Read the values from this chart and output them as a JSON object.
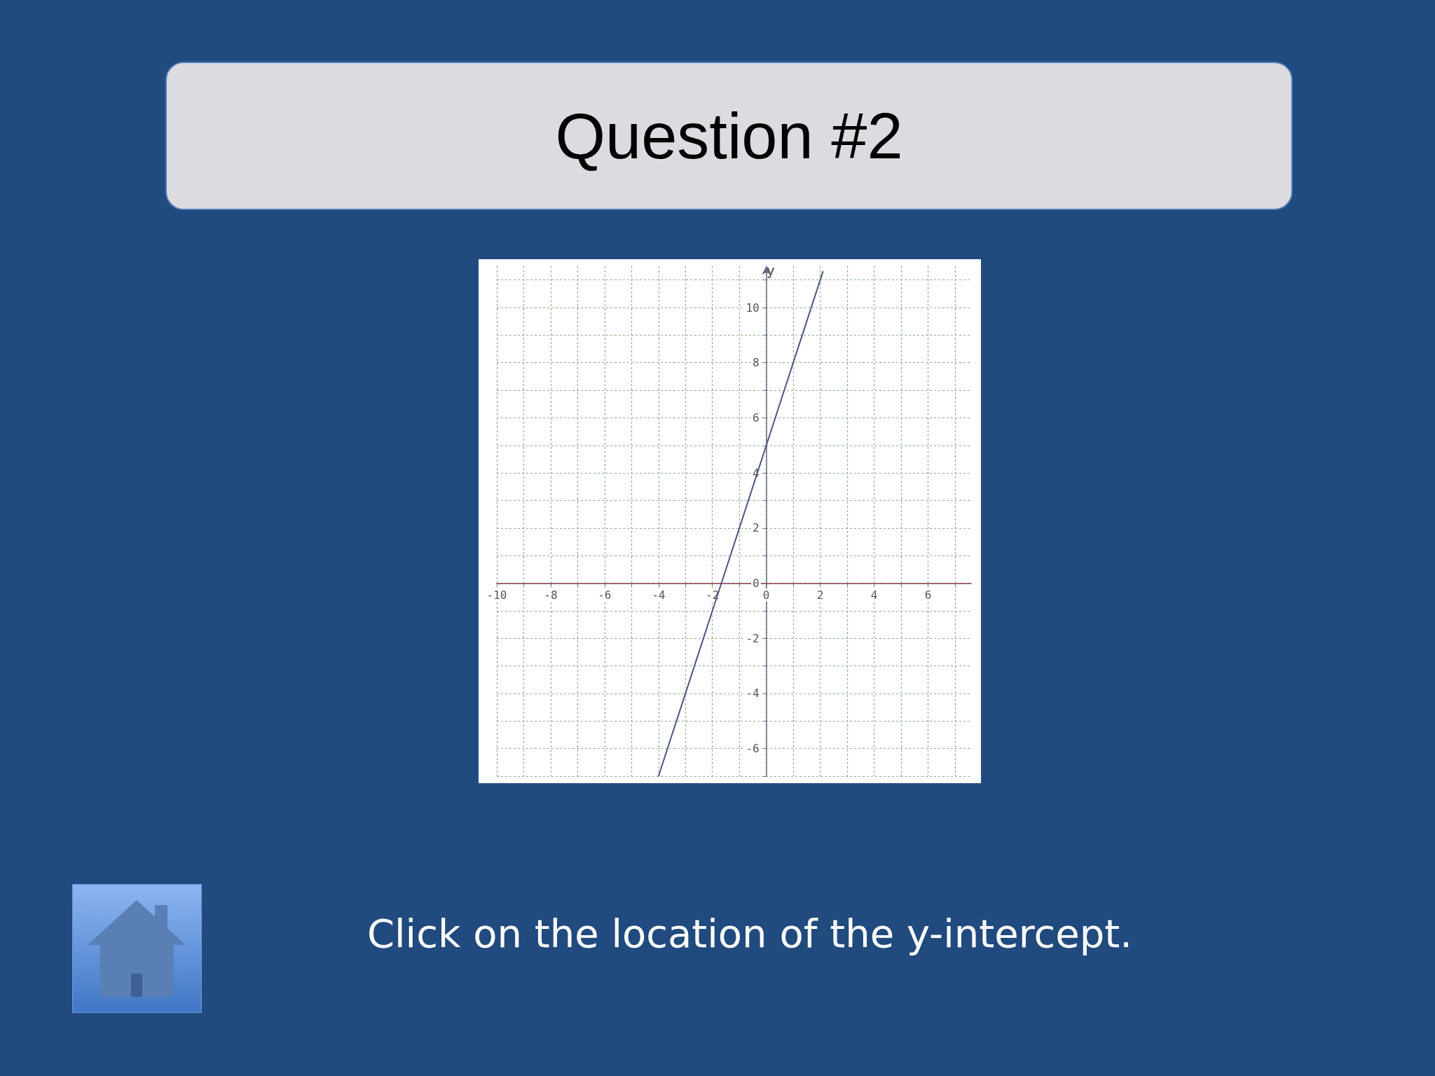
{
  "chart_data": {
    "type": "line",
    "title": "Question #2",
    "ylabel": "y",
    "annotations": [
      "Click on the location of the y-intercept."
    ],
    "series": [
      {
        "color": "#4d5482",
        "x": [
          -4,
          0,
          2.1
        ],
        "values": [
          -7,
          5,
          11.3
        ]
      }
    ],
    "xlim": [
      -10,
      7.6
    ],
    "ylim": [
      -7,
      11.5
    ],
    "xticks": [
      -10,
      {
        "value": -9,
        "label": null
      },
      -8,
      {
        "value": -7,
        "label": null
      },
      -6,
      {
        "value": -5,
        "label": null
      },
      -4,
      {
        "value": -3,
        "label": null
      },
      -2,
      {
        "value": -1,
        "label": null
      },
      0,
      {
        "value": 1,
        "label": null
      },
      2,
      {
        "value": 3,
        "label": null
      },
      4,
      {
        "value": 5,
        "label": null
      },
      6,
      {
        "value": 7,
        "label": null
      }
    ],
    "yticks": [
      {
        "value": -7,
        "label": null
      },
      -6,
      {
        "value": -5,
        "label": null
      },
      -4,
      {
        "value": -3,
        "label": null
      },
      -2,
      {
        "value": -1,
        "label": null
      },
      0,
      {
        "value": 1,
        "label": null
      },
      2,
      {
        "value": 3,
        "label": null
      },
      4,
      {
        "value": 5,
        "label": null
      },
      6,
      {
        "value": 7,
        "label": null
      },
      8,
      {
        "value": 9,
        "label": null
      },
      10,
      {
        "value": 11,
        "label": null
      }
    ],
    "grid": true,
    "marker": "none",
    "line_style": "solid"
  }
}
